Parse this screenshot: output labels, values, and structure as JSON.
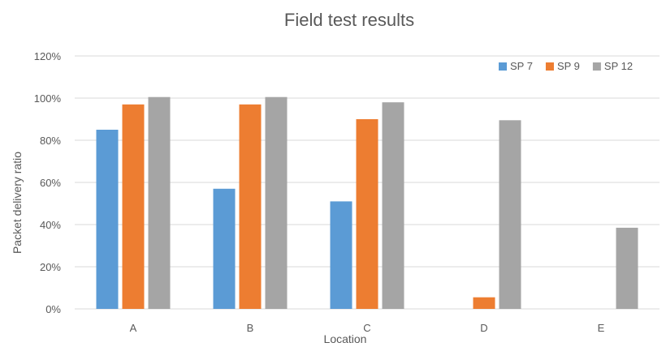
{
  "chart_data": {
    "type": "bar",
    "title": "Field test results",
    "xlabel": "Location",
    "ylabel": "Packet delivery ratio",
    "categories": [
      "A",
      "B",
      "C",
      "D",
      "E"
    ],
    "series": [
      {
        "name": "SP 7",
        "color": "#5b9bd5",
        "values": [
          85,
          57,
          51,
          0,
          0
        ]
      },
      {
        "name": "SP 9",
        "color": "#ed7d31",
        "values": [
          97,
          97,
          90,
          5.5,
          0
        ]
      },
      {
        "name": "SP 12",
        "color": "#a5a5a5",
        "values": [
          100.5,
          100.5,
          98,
          89.5,
          38.5
        ]
      }
    ],
    "ylim": [
      0,
      120
    ],
    "yticks": [
      "0%",
      "20%",
      "40%",
      "60%",
      "80%",
      "100%",
      "120%"
    ],
    "grid": true,
    "legend_position": "top-right"
  }
}
